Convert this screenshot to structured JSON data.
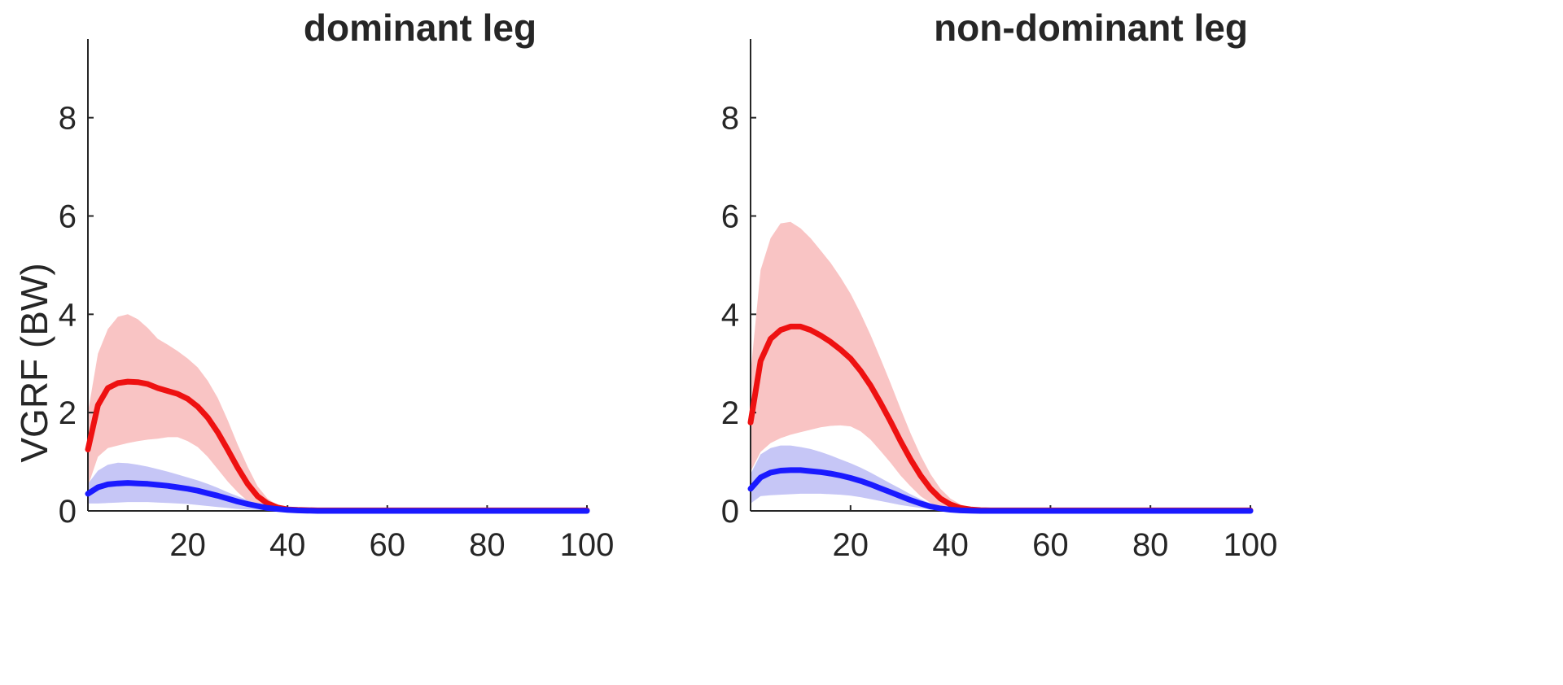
{
  "chart_data": [
    {
      "type": "line",
      "title": "dominant leg",
      "xlabel": "",
      "ylabel": "VGRF (BW)",
      "xlim": [
        0,
        100
      ],
      "ylim": [
        0,
        9.6
      ],
      "x_ticks": [
        20,
        40,
        60,
        80,
        100
      ],
      "y_ticks": [
        0,
        2,
        4,
        6,
        8
      ],
      "grid": false,
      "series": [
        {
          "color": "#ee1111",
          "band_color": "#f8baba",
          "x": [
            0,
            2,
            4,
            6,
            8,
            10,
            12,
            14,
            16,
            18,
            20,
            22,
            24,
            26,
            28,
            30,
            32,
            34,
            36,
            38,
            40,
            42,
            44,
            46,
            50,
            60,
            70,
            80,
            90,
            100
          ],
          "values": [
            1.25,
            2.15,
            2.5,
            2.6,
            2.63,
            2.62,
            2.58,
            2.5,
            2.44,
            2.38,
            2.28,
            2.12,
            1.9,
            1.6,
            1.25,
            0.88,
            0.55,
            0.3,
            0.15,
            0.07,
            0.03,
            0.02,
            0.015,
            0.01,
            0.01,
            0.01,
            0.01,
            0.01,
            0.01,
            0.01
          ],
          "upper": [
            2.0,
            3.2,
            3.7,
            3.95,
            4.0,
            3.9,
            3.72,
            3.5,
            3.38,
            3.25,
            3.1,
            2.92,
            2.65,
            2.3,
            1.85,
            1.35,
            0.9,
            0.5,
            0.25,
            0.12,
            0.06,
            0.04,
            0.03,
            0.02,
            0.02,
            0.02,
            0.02,
            0.02,
            0.02,
            0.02
          ],
          "lower": [
            0.5,
            1.1,
            1.28,
            1.33,
            1.38,
            1.42,
            1.45,
            1.47,
            1.5,
            1.5,
            1.42,
            1.3,
            1.1,
            0.85,
            0.6,
            0.38,
            0.2,
            0.1,
            0.04,
            0.01,
            0.0,
            0.0,
            0.0,
            0.0,
            0.0,
            0.0,
            0.0,
            0.0,
            0.0,
            0.0
          ]
        },
        {
          "color": "#1a1aff",
          "band_color": "#bcbcf4",
          "x": [
            0,
            2,
            4,
            6,
            8,
            10,
            12,
            14,
            16,
            18,
            20,
            22,
            24,
            26,
            28,
            30,
            32,
            34,
            36,
            38,
            40,
            42,
            44,
            46,
            50,
            60,
            70,
            80,
            90,
            100
          ],
          "values": [
            0.35,
            0.48,
            0.54,
            0.56,
            0.57,
            0.56,
            0.55,
            0.53,
            0.51,
            0.48,
            0.45,
            0.41,
            0.36,
            0.31,
            0.25,
            0.19,
            0.14,
            0.1,
            0.06,
            0.04,
            0.02,
            0.01,
            0.005,
            0.0,
            0.0,
            0.0,
            0.0,
            0.0,
            0.0,
            0.0
          ],
          "upper": [
            0.55,
            0.82,
            0.94,
            0.98,
            0.97,
            0.94,
            0.9,
            0.85,
            0.8,
            0.74,
            0.68,
            0.62,
            0.55,
            0.47,
            0.38,
            0.3,
            0.22,
            0.15,
            0.1,
            0.06,
            0.03,
            0.015,
            0.01,
            0.0,
            0.0,
            0.0,
            0.0,
            0.0,
            0.0,
            0.0
          ],
          "lower": [
            0.15,
            0.15,
            0.16,
            0.17,
            0.18,
            0.18,
            0.18,
            0.17,
            0.16,
            0.15,
            0.14,
            0.12,
            0.1,
            0.08,
            0.06,
            0.04,
            0.03,
            0.02,
            0.01,
            0.0,
            0.0,
            0.0,
            0.0,
            0.0,
            0.0,
            0.0,
            0.0,
            0.0,
            0.0,
            0.0
          ]
        }
      ]
    },
    {
      "type": "line",
      "title": "non-dominant leg",
      "xlabel": "",
      "ylabel": "",
      "xlim": [
        0,
        100
      ],
      "ylim": [
        0,
        9.6
      ],
      "x_ticks": [
        20,
        40,
        60,
        80,
        100
      ],
      "y_ticks": [
        0,
        2,
        4,
        6,
        8
      ],
      "grid": false,
      "series": [
        {
          "color": "#ee1111",
          "band_color": "#f8baba",
          "x": [
            0,
            2,
            4,
            6,
            8,
            10,
            12,
            14,
            16,
            18,
            20,
            22,
            24,
            26,
            28,
            30,
            32,
            34,
            36,
            38,
            40,
            42,
            44,
            46,
            48,
            50,
            60,
            70,
            80,
            90,
            100
          ],
          "values": [
            1.8,
            3.05,
            3.5,
            3.68,
            3.75,
            3.75,
            3.68,
            3.57,
            3.44,
            3.28,
            3.1,
            2.85,
            2.55,
            2.2,
            1.82,
            1.42,
            1.05,
            0.72,
            0.45,
            0.25,
            0.13,
            0.06,
            0.03,
            0.015,
            0.01,
            0.01,
            0.01,
            0.01,
            0.01,
            0.01,
            0.01
          ],
          "upper": [
            2.8,
            4.9,
            5.55,
            5.85,
            5.88,
            5.75,
            5.55,
            5.3,
            5.05,
            4.75,
            4.42,
            4.02,
            3.58,
            3.1,
            2.6,
            2.08,
            1.58,
            1.13,
            0.75,
            0.45,
            0.25,
            0.13,
            0.07,
            0.04,
            0.02,
            0.01,
            0.01,
            0.01,
            0.01,
            0.01,
            0.01
          ],
          "lower": [
            0.8,
            1.2,
            1.38,
            1.48,
            1.55,
            1.6,
            1.65,
            1.7,
            1.73,
            1.74,
            1.72,
            1.62,
            1.45,
            1.22,
            0.98,
            0.72,
            0.5,
            0.3,
            0.16,
            0.07,
            0.02,
            0.0,
            0.0,
            0.0,
            0.0,
            0.0,
            0.0,
            0.0,
            0.0,
            0.0,
            0.0
          ]
        },
        {
          "color": "#1a1aff",
          "band_color": "#bcbcf4",
          "x": [
            0,
            2,
            4,
            6,
            8,
            10,
            12,
            14,
            16,
            18,
            20,
            22,
            24,
            26,
            28,
            30,
            32,
            34,
            36,
            38,
            40,
            42,
            44,
            46,
            50,
            60,
            70,
            80,
            90,
            100
          ],
          "values": [
            0.45,
            0.68,
            0.78,
            0.82,
            0.83,
            0.83,
            0.81,
            0.79,
            0.76,
            0.72,
            0.67,
            0.61,
            0.54,
            0.46,
            0.38,
            0.3,
            0.22,
            0.15,
            0.09,
            0.05,
            0.025,
            0.01,
            0.005,
            0.0,
            0.0,
            0.0,
            0.0,
            0.0,
            0.0,
            0.0
          ],
          "upper": [
            0.75,
            1.15,
            1.28,
            1.33,
            1.33,
            1.3,
            1.26,
            1.2,
            1.13,
            1.05,
            0.97,
            0.88,
            0.78,
            0.67,
            0.56,
            0.45,
            0.34,
            0.24,
            0.15,
            0.09,
            0.05,
            0.02,
            0.01,
            0.0,
            0.0,
            0.0,
            0.0,
            0.0,
            0.0,
            0.0
          ],
          "lower": [
            0.15,
            0.3,
            0.32,
            0.33,
            0.34,
            0.35,
            0.35,
            0.35,
            0.34,
            0.33,
            0.31,
            0.28,
            0.24,
            0.2,
            0.16,
            0.12,
            0.09,
            0.06,
            0.03,
            0.01,
            0.0,
            0.0,
            0.0,
            0.0,
            0.0,
            0.0,
            0.0,
            0.0,
            0.0,
            0.0
          ]
        }
      ]
    }
  ]
}
